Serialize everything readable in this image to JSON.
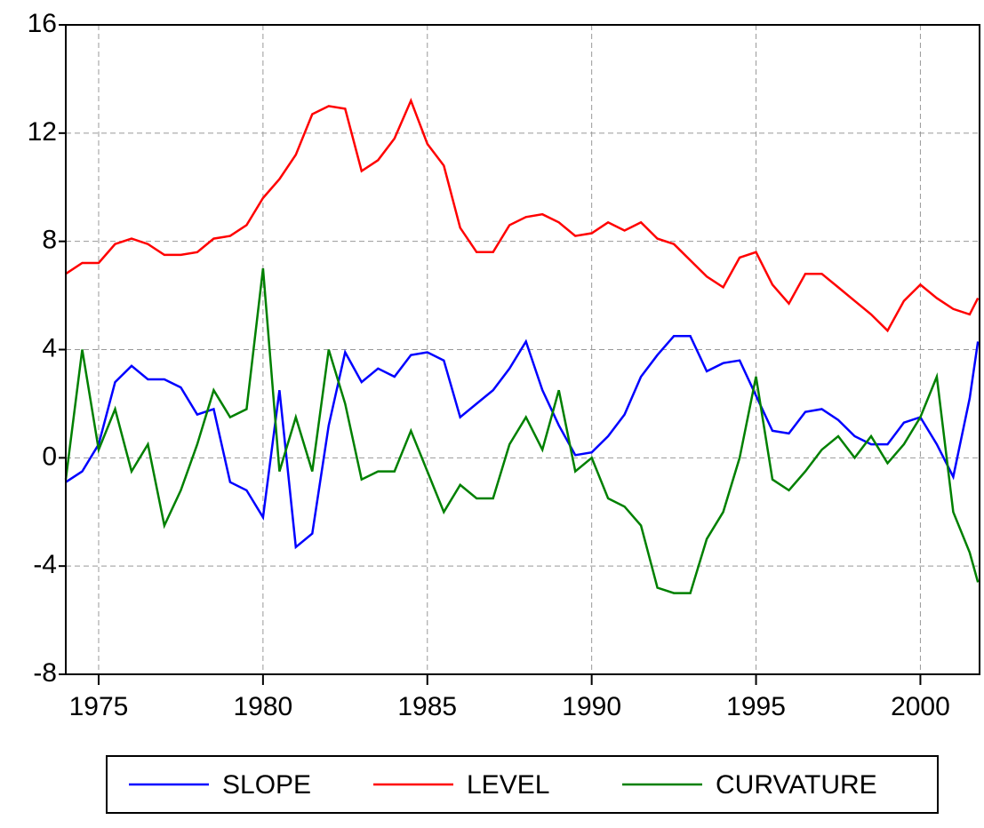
{
  "chart_data": {
    "type": "line",
    "x": [
      1974.0,
      1974.5,
      1975.0,
      1975.5,
      1976.0,
      1976.5,
      1977.0,
      1977.5,
      1978.0,
      1978.5,
      1979.0,
      1979.5,
      1980.0,
      1980.5,
      1981.0,
      1981.5,
      1982.0,
      1982.5,
      1983.0,
      1983.5,
      1984.0,
      1984.5,
      1985.0,
      1985.5,
      1986.0,
      1986.5,
      1987.0,
      1987.5,
      1988.0,
      1988.5,
      1989.0,
      1989.5,
      1990.0,
      1990.5,
      1991.0,
      1991.5,
      1992.0,
      1992.5,
      1993.0,
      1993.5,
      1994.0,
      1994.5,
      1995.0,
      1995.5,
      1996.0,
      1996.5,
      1997.0,
      1997.5,
      1998.0,
      1998.5,
      1999.0,
      1999.5,
      2000.0,
      2000.5,
      2001.0,
      2001.5,
      2001.75
    ],
    "series": [
      {
        "name": "SLOPE",
        "color": "#0000ff",
        "values": [
          -0.9,
          -0.5,
          0.5,
          2.8,
          3.4,
          2.9,
          2.9,
          2.6,
          1.6,
          1.8,
          -0.9,
          -1.2,
          -2.2,
          2.5,
          -3.3,
          -2.8,
          1.2,
          3.9,
          2.8,
          3.3,
          3.0,
          3.8,
          3.9,
          3.6,
          1.5,
          2.0,
          2.5,
          3.3,
          4.3,
          2.5,
          1.2,
          0.1,
          0.2,
          0.8,
          1.6,
          3.0,
          3.8,
          4.5,
          4.5,
          3.2,
          3.5,
          3.6,
          2.3,
          1.0,
          0.9,
          1.7,
          1.8,
          1.4,
          0.8,
          0.5,
          0.5,
          1.3,
          1.5,
          0.5,
          -0.7,
          2.2,
          4.3
        ]
      },
      {
        "name": "LEVEL",
        "color": "#ff0000",
        "values": [
          6.8,
          7.2,
          7.2,
          7.9,
          8.1,
          7.9,
          7.5,
          7.5,
          7.6,
          8.1,
          8.2,
          8.6,
          9.6,
          10.3,
          11.2,
          12.7,
          13.0,
          12.9,
          10.6,
          11.0,
          11.8,
          13.2,
          11.6,
          10.8,
          8.5,
          7.6,
          7.6,
          8.6,
          8.9,
          9.0,
          8.7,
          8.2,
          8.3,
          8.7,
          8.4,
          8.7,
          8.1,
          7.9,
          7.3,
          6.7,
          6.3,
          7.4,
          7.6,
          6.4,
          5.7,
          6.8,
          6.8,
          6.3,
          5.8,
          5.3,
          4.7,
          5.8,
          6.4,
          5.9,
          5.5,
          5.3,
          5.9
        ]
      },
      {
        "name": "CURVATURE",
        "color": "#008000",
        "values": [
          -0.8,
          4.0,
          0.3,
          1.8,
          -0.5,
          0.5,
          -2.5,
          -1.2,
          0.5,
          2.5,
          1.5,
          1.8,
          7.0,
          -0.5,
          1.5,
          -0.5,
          4.0,
          2.0,
          -0.8,
          -0.5,
          -0.5,
          1.0,
          -0.5,
          -2.0,
          -1.0,
          -1.5,
          -1.5,
          0.5,
          1.5,
          0.3,
          2.5,
          -0.5,
          0.0,
          -1.5,
          -1.8,
          -2.5,
          -4.8,
          -5.0,
          -5.0,
          -3.0,
          -2.0,
          0.0,
          3.0,
          -0.8,
          -1.2,
          -0.5,
          0.3,
          0.8,
          0.0,
          0.8,
          -0.2,
          0.5,
          1.5,
          3.0,
          -2.0,
          -3.5,
          -4.6
        ]
      }
    ],
    "xlim": [
      1974.0,
      2001.8
    ],
    "xticks": [
      1975,
      1980,
      1985,
      1990,
      1995,
      2000
    ],
    "ylim": [
      -8,
      16
    ],
    "yticks": [
      -8,
      -4,
      0,
      4,
      8,
      12,
      16
    ],
    "grid": true,
    "legend": "bottom"
  }
}
